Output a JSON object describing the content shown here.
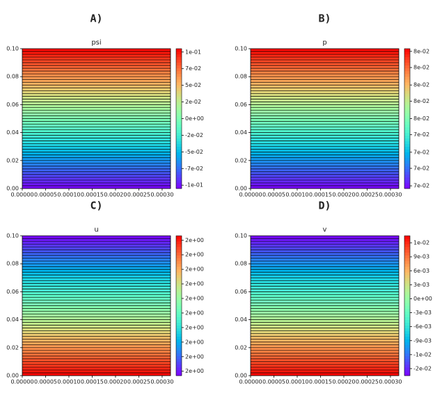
{
  "chart_data": [
    {
      "type": "contour",
      "panel": "A)",
      "title": "psi",
      "colormap": "rainbow",
      "levels": 50,
      "increasing": "up",
      "clim": [
        -0.105,
        0.105
      ],
      "xlim": [
        0,
        0.000318
      ],
      "ylim": [
        0,
        0.1
      ],
      "xticks": [
        {
          "value": 0,
          "label": "0.00000"
        },
        {
          "value": 5e-05,
          "label": "0.00005"
        },
        {
          "value": 0.0001,
          "label": "0.00010"
        },
        {
          "value": 0.00015,
          "label": "0.00015"
        },
        {
          "value": 0.0002,
          "label": "0.00020"
        },
        {
          "value": 0.00025,
          "label": "0.00025"
        },
        {
          "value": 0.0003,
          "label": "0.00030"
        }
      ],
      "yticks": [
        {
          "value": 0,
          "label": "0.00"
        },
        {
          "value": 0.02,
          "label": "0.02"
        },
        {
          "value": 0.04,
          "label": "0.04"
        },
        {
          "value": 0.06,
          "label": "0.06"
        },
        {
          "value": 0.08,
          "label": "0.08"
        },
        {
          "value": 0.1,
          "label": "0.10"
        }
      ],
      "cticks": [
        {
          "value": 0.1,
          "label": "1e-01"
        },
        {
          "value": 0.075,
          "label": "7e-02"
        },
        {
          "value": 0.05,
          "label": "5e-02"
        },
        {
          "value": 0.025,
          "label": "2e-02"
        },
        {
          "value": 0,
          "label": "0e+00"
        },
        {
          "value": -0.025,
          "label": "-2e-02"
        },
        {
          "value": -0.05,
          "label": "-5e-02"
        },
        {
          "value": -0.075,
          "label": "-7e-02"
        },
        {
          "value": -0.1,
          "label": "-1e-01"
        }
      ]
    },
    {
      "type": "contour",
      "panel": "B)",
      "title": "p",
      "colormap": "rainbow",
      "levels": 50,
      "increasing": "up",
      "clim": [
        0.0698,
        0.0802
      ],
      "xlim": [
        0,
        0.000318
      ],
      "ylim": [
        0,
        0.1
      ],
      "xticks": [
        {
          "value": 0,
          "label": "0.00000"
        },
        {
          "value": 5e-05,
          "label": "0.00005"
        },
        {
          "value": 0.0001,
          "label": "0.00010"
        },
        {
          "value": 0.00015,
          "label": "0.00015"
        },
        {
          "value": 0.0002,
          "label": "0.00020"
        },
        {
          "value": 0.00025,
          "label": "0.00025"
        },
        {
          "value": 0.0003,
          "label": "0.00030"
        }
      ],
      "yticks": [
        {
          "value": 0,
          "label": "0.00"
        },
        {
          "value": 0.02,
          "label": "0.02"
        },
        {
          "value": 0.04,
          "label": "0.04"
        },
        {
          "value": 0.06,
          "label": "0.06"
        },
        {
          "value": 0.08,
          "label": "0.08"
        },
        {
          "value": 0.1,
          "label": "0.10"
        }
      ],
      "cticks": [
        {
          "value": 0.08,
          "label": "8e-02"
        },
        {
          "value": 0.0788,
          "label": "8e-02"
        },
        {
          "value": 0.0775,
          "label": "8e-02"
        },
        {
          "value": 0.0763,
          "label": "8e-02"
        },
        {
          "value": 0.075,
          "label": "8e-02"
        },
        {
          "value": 0.0738,
          "label": "7e-02"
        },
        {
          "value": 0.0725,
          "label": "7e-02"
        },
        {
          "value": 0.0713,
          "label": "7e-02"
        },
        {
          "value": 0.07,
          "label": "7e-02"
        }
      ]
    },
    {
      "type": "contour",
      "panel": "C)",
      "title": "u",
      "colormap": "rainbow",
      "levels": 50,
      "increasing": "down",
      "clim": [
        1.52,
        2.48
      ],
      "xlim": [
        0,
        0.000318
      ],
      "ylim": [
        0,
        0.1
      ],
      "xticks": [
        {
          "value": 0,
          "label": "0.00000"
        },
        {
          "value": 5e-05,
          "label": "0.00005"
        },
        {
          "value": 0.0001,
          "label": "0.00010"
        },
        {
          "value": 0.00015,
          "label": "0.00015"
        },
        {
          "value": 0.0002,
          "label": "0.00020"
        },
        {
          "value": 0.00025,
          "label": "0.00025"
        },
        {
          "value": 0.0003,
          "label": "0.00030"
        }
      ],
      "yticks": [
        {
          "value": 0,
          "label": "0.00"
        },
        {
          "value": 0.02,
          "label": "0.02"
        },
        {
          "value": 0.04,
          "label": "0.04"
        },
        {
          "value": 0.06,
          "label": "0.06"
        },
        {
          "value": 0.08,
          "label": "0.08"
        },
        {
          "value": 0.1,
          "label": "0.10"
        }
      ],
      "cticks": [
        {
          "value": 2.45,
          "label": "2e+00"
        },
        {
          "value": 2.35,
          "label": "2e+00"
        },
        {
          "value": 2.25,
          "label": "2e+00"
        },
        {
          "value": 2.15,
          "label": "2e+00"
        },
        {
          "value": 2.05,
          "label": "2e+00"
        },
        {
          "value": 1.95,
          "label": "2e+00"
        },
        {
          "value": 1.85,
          "label": "2e+00"
        },
        {
          "value": 1.75,
          "label": "2e+00"
        },
        {
          "value": 1.65,
          "label": "2e+00"
        },
        {
          "value": 1.55,
          "label": "2e+00"
        }
      ]
    },
    {
      "type": "contour",
      "panel": "D)",
      "title": "v",
      "colormap": "rainbow",
      "levels": 50,
      "increasing": "down",
      "clim": [
        -0.0165,
        0.0135
      ],
      "xlim": [
        0,
        0.000318
      ],
      "ylim": [
        0,
        0.1
      ],
      "xticks": [
        {
          "value": 0,
          "label": "0.00000"
        },
        {
          "value": 5e-05,
          "label": "0.00005"
        },
        {
          "value": 0.0001,
          "label": "0.00010"
        },
        {
          "value": 0.00015,
          "label": "0.00015"
        },
        {
          "value": 0.0002,
          "label": "0.00020"
        },
        {
          "value": 0.00025,
          "label": "0.00025"
        },
        {
          "value": 0.0003,
          "label": "0.00030"
        }
      ],
      "yticks": [
        {
          "value": 0,
          "label": "0.00"
        },
        {
          "value": 0.02,
          "label": "0.02"
        },
        {
          "value": 0.04,
          "label": "0.04"
        },
        {
          "value": 0.06,
          "label": "0.06"
        },
        {
          "value": 0.08,
          "label": "0.08"
        },
        {
          "value": 0.1,
          "label": "0.10"
        }
      ],
      "cticks": [
        {
          "value": 0.012,
          "label": "1e-02"
        },
        {
          "value": 0.009,
          "label": "9e-03"
        },
        {
          "value": 0.006,
          "label": "6e-03"
        },
        {
          "value": 0.003,
          "label": "3e-03"
        },
        {
          "value": 0,
          "label": "0e+00"
        },
        {
          "value": -0.003,
          "label": "-3e-03"
        },
        {
          "value": -0.006,
          "label": "-6e-03"
        },
        {
          "value": -0.009,
          "label": "-9e-03"
        },
        {
          "value": -0.012,
          "label": "-1e-02"
        },
        {
          "value": -0.015,
          "label": "-2e-02"
        }
      ]
    }
  ]
}
